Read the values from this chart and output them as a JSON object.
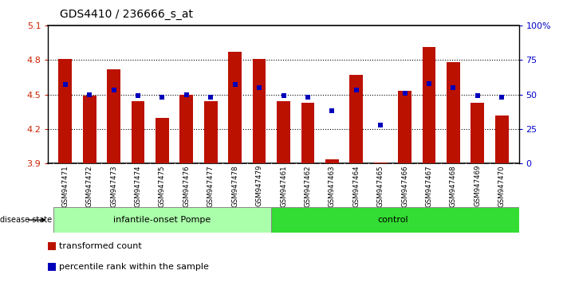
{
  "title": "GDS4410 / 236666_s_at",
  "samples": [
    "GSM947471",
    "GSM947472",
    "GSM947473",
    "GSM947474",
    "GSM947475",
    "GSM947476",
    "GSM947477",
    "GSM947478",
    "GSM947479",
    "GSM947461",
    "GSM947462",
    "GSM947463",
    "GSM947464",
    "GSM947465",
    "GSM947466",
    "GSM947467",
    "GSM947468",
    "GSM947469",
    "GSM947470"
  ],
  "bar_values": [
    4.81,
    4.49,
    4.72,
    4.44,
    4.3,
    4.5,
    4.44,
    4.87,
    4.81,
    4.44,
    4.43,
    3.94,
    4.67,
    3.91,
    4.53,
    4.91,
    4.78,
    4.43,
    4.32
  ],
  "percentile_values": [
    57,
    50,
    53,
    49,
    48,
    50,
    48,
    57,
    55,
    49,
    48,
    38,
    53,
    28,
    51,
    58,
    55,
    49,
    48
  ],
  "group_labels": [
    "infantile-onset Pompe",
    "control"
  ],
  "group_sizes": [
    9,
    10
  ],
  "pompe_color": "#AAFFAA",
  "control_color": "#33DD33",
  "bar_color": "#BB1100",
  "percentile_color": "#0000BB",
  "ylim_left": [
    3.9,
    5.1
  ],
  "ylim_right": [
    0,
    100
  ],
  "yticks_left": [
    3.9,
    4.2,
    4.5,
    4.8,
    5.1
  ],
  "yticks_right": [
    0,
    25,
    50,
    75,
    100
  ],
  "ytick_labels_left": [
    "3.9",
    "4.2",
    "4.5",
    "4.8",
    "5.1"
  ],
  "ytick_labels_right": [
    "0",
    "25",
    "50",
    "75",
    "100%"
  ],
  "hlines": [
    4.2,
    4.5,
    4.8
  ],
  "disease_label": "disease state",
  "legend1": "transformed count",
  "legend2": "percentile rank within the sample",
  "xtick_bg": "#CCCCCC",
  "plot_bg": "#FFFFFF"
}
